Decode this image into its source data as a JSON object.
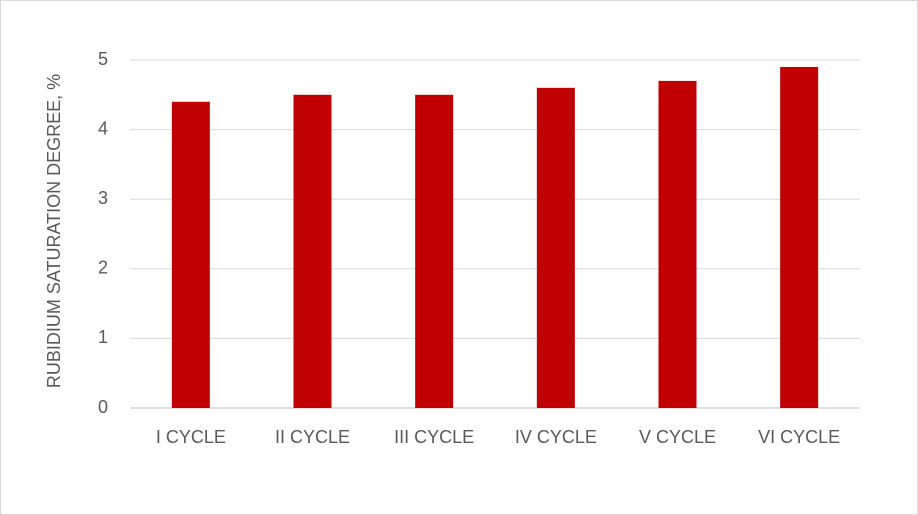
{
  "chart_data": {
    "type": "bar",
    "y_label": "RUBIDIUM SATURATION DEGREE,  %",
    "categories": [
      "I CYCLE",
      "II CYCLE",
      "III CYCLE",
      "IV CYCLE",
      "V CYCLE",
      "VI CYCLE"
    ],
    "values": [
      4.4,
      4.5,
      4.5,
      4.6,
      4.7,
      4.9
    ],
    "color": "#c00000",
    "ylim": [
      0,
      5
    ],
    "yticks": [
      0,
      1,
      2,
      3,
      4,
      5
    ],
    "grid": true
  }
}
